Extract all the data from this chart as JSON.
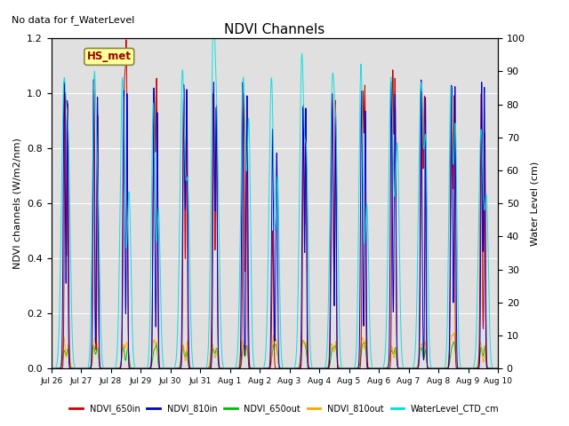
{
  "title": "NDVI Channels",
  "top_left_text": "No data for f_WaterLevel",
  "ylabel_left": "NDVI channels (W/m2/nm)",
  "ylabel_right": "Water Level (cm)",
  "ylim_left": [
    0,
    1.2
  ],
  "ylim_right": [
    0,
    100
  ],
  "xlim": [
    0,
    15
  ],
  "background_color": "#e0e0e0",
  "colors": {
    "NDVI_650in": "#cc0000",
    "NDVI_810in": "#0000cc",
    "NDVI_650out": "#00bb00",
    "NDVI_810out": "#ffa500",
    "WaterLevel_CTD_cm": "#00dddd"
  },
  "annotation_box": {
    "text": "HS_met",
    "facecolor": "#ffff99",
    "edgecolor": "#888844",
    "textcolor": "#990000"
  },
  "tick_labels": [
    "Jul 26",
    "Jul 27",
    "Jul 28",
    "Jul 29",
    "Jul 30",
    "Jul 31",
    "Aug 1",
    "Aug 2",
    "Aug 3",
    "Aug 4",
    "Aug 5",
    "Aug 6",
    "Aug 7",
    "Aug 8",
    "Aug 9",
    "Aug 10"
  ],
  "num_days": 15
}
